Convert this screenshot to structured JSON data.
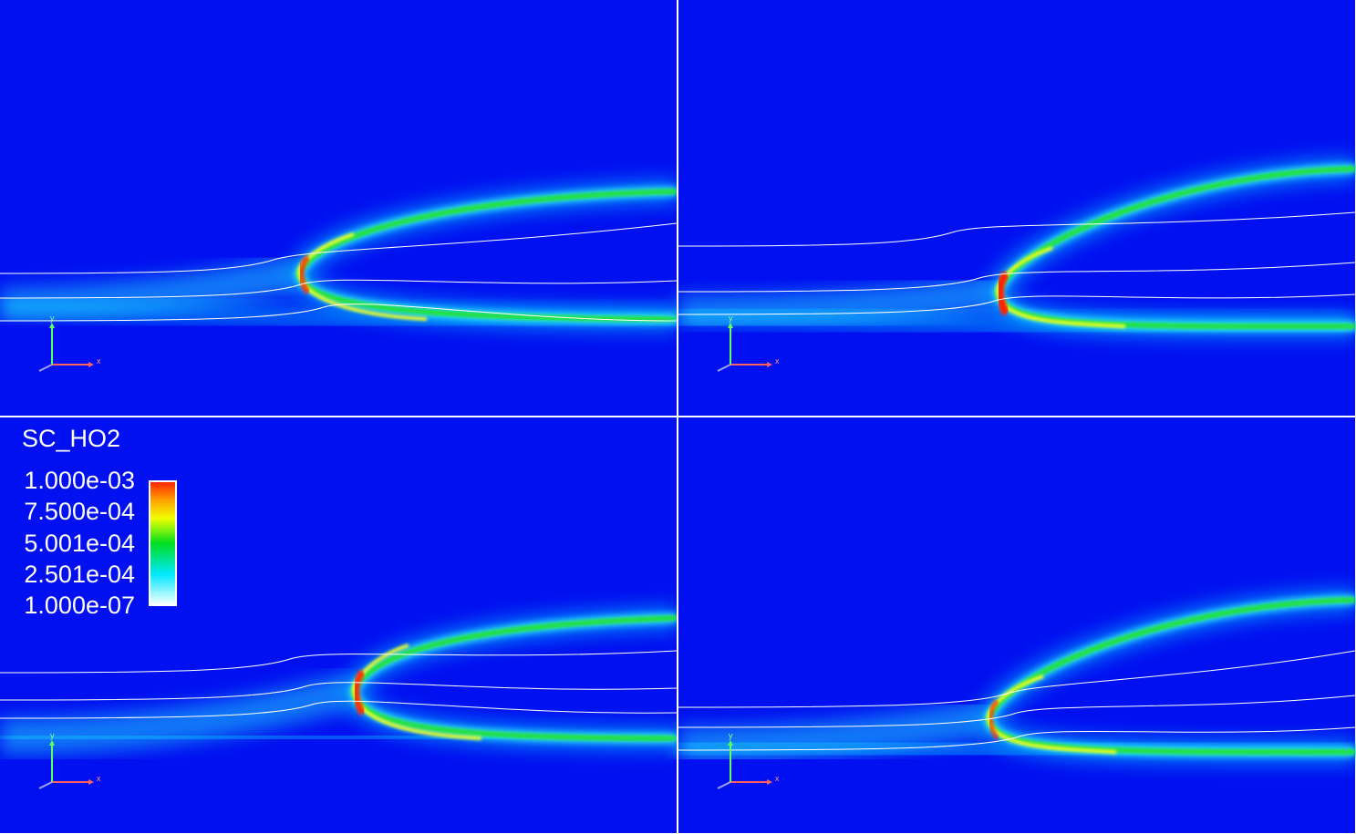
{
  "legend": {
    "title": "SC_HO2",
    "labels": [
      "1.000e-03",
      "7.500e-04",
      "5.001e-04",
      "2.501e-04",
      "1.000e-07"
    ]
  },
  "panels": [
    {
      "axis_x": "x",
      "axis_y": "y"
    },
    {
      "axis_x": "x",
      "axis_y": "y"
    },
    {
      "axis_x": "x",
      "axis_y": "y"
    },
    {
      "axis_x": "x",
      "axis_y": "y"
    }
  ]
}
